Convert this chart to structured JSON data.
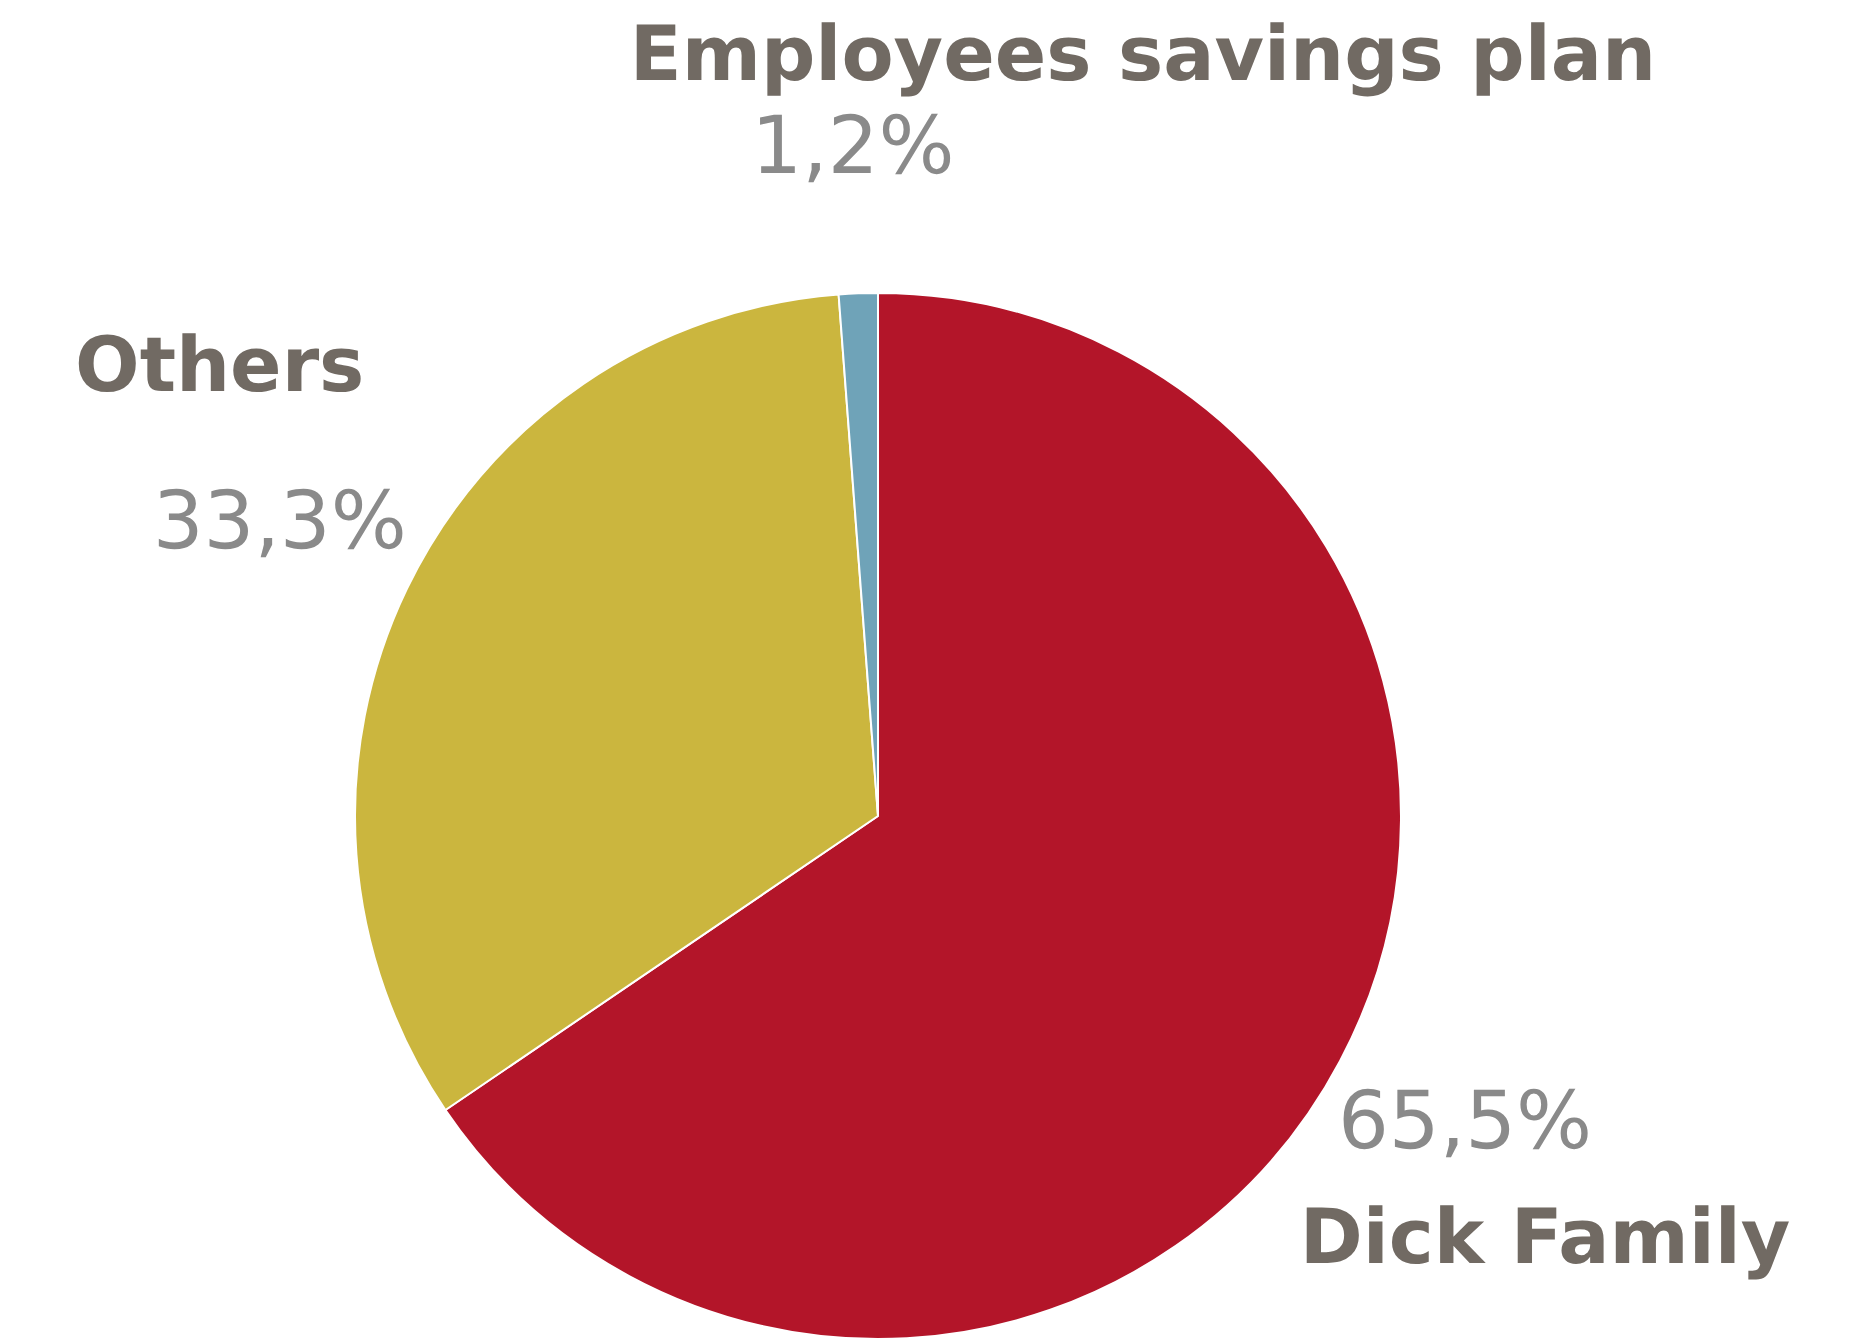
{
  "chart_data": {
    "type": "pie",
    "categories": [
      "Dick Family",
      "Others",
      "Employees savings plan"
    ],
    "values": [
      65.5,
      33.3,
      1.2
    ],
    "colors": [
      "#b31529",
      "#cbb63e",
      "#6fa3b8"
    ],
    "value_labels": [
      "65,5%",
      "33,3%",
      "1,2%"
    ],
    "legend": false
  }
}
